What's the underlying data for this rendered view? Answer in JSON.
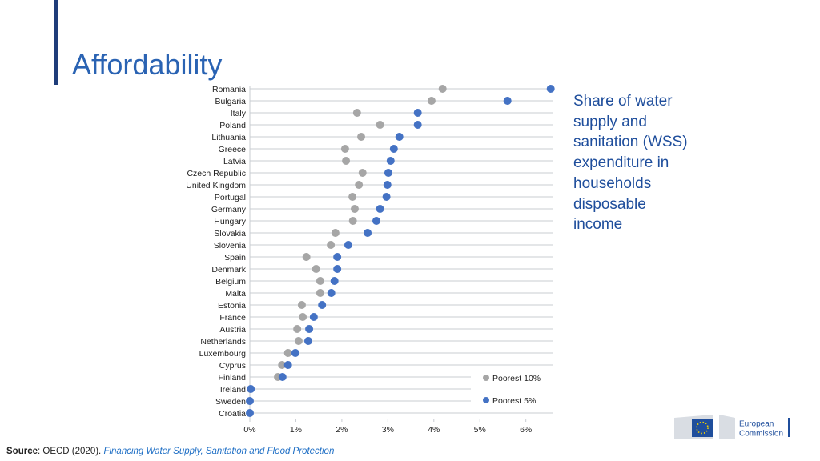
{
  "slide_title": "Affordability",
  "description": [
    "Share of water",
    "supply and",
    "sanitation (WSS)",
    "expenditure in",
    "households",
    "disposable",
    "income"
  ],
  "source": {
    "label": "Source",
    "text": ": OECD (2020). ",
    "link": "Financing Water Supply, Sanitation and Flood Protection"
  },
  "logo": {
    "line1": "European",
    "line2": "Commission"
  },
  "chart_data": {
    "type": "dot",
    "categories": [
      "Romania",
      "Bulgaria",
      "Italy",
      "Poland",
      "Lithuania",
      "Greece",
      "Latvia",
      "Czech Republic",
      "United Kingdom",
      "Portugal",
      "Germany",
      "Hungary",
      "Slovakia",
      "Slovenia",
      "Spain",
      "Denmark",
      "Belgium",
      "Malta",
      "Estonia",
      "France",
      "Austria",
      "Netherlands",
      "Luxembourg",
      "Cyprus",
      "Finland",
      "Ireland",
      "Sweden",
      "Croatia"
    ],
    "series": [
      {
        "name": "Poorest 10%",
        "color": "#a6a6a6",
        "values": [
          4.19,
          3.95,
          2.33,
          2.83,
          2.42,
          2.07,
          2.09,
          2.45,
          2.37,
          2.23,
          2.28,
          2.24,
          1.86,
          1.76,
          1.23,
          1.44,
          1.53,
          1.53,
          1.13,
          1.15,
          1.03,
          1.06,
          0.83,
          0.7,
          0.61,
          null,
          null,
          null
        ]
      },
      {
        "name": "Poorest 5%",
        "color": "#4472c4",
        "values": [
          6.54,
          5.6,
          3.65,
          3.65,
          3.25,
          3.13,
          3.06,
          3.01,
          2.99,
          2.97,
          2.83,
          2.75,
          2.56,
          2.14,
          1.9,
          1.9,
          1.84,
          1.77,
          1.57,
          1.39,
          1.29,
          1.27,
          0.99,
          0.83,
          0.71,
          0.02,
          0,
          0
        ]
      }
    ],
    "xlim": [
      0,
      6.58
    ],
    "xticks": [
      {
        "value": 0,
        "label": "0%"
      },
      {
        "value": 1,
        "label": "1%"
      },
      {
        "value": 2,
        "label": "2%"
      },
      {
        "value": 3,
        "label": "3%"
      },
      {
        "value": 4,
        "label": "4%"
      },
      {
        "value": 5,
        "label": "5%"
      },
      {
        "value": 6,
        "label": "6%"
      }
    ],
    "legend": "lower right"
  }
}
